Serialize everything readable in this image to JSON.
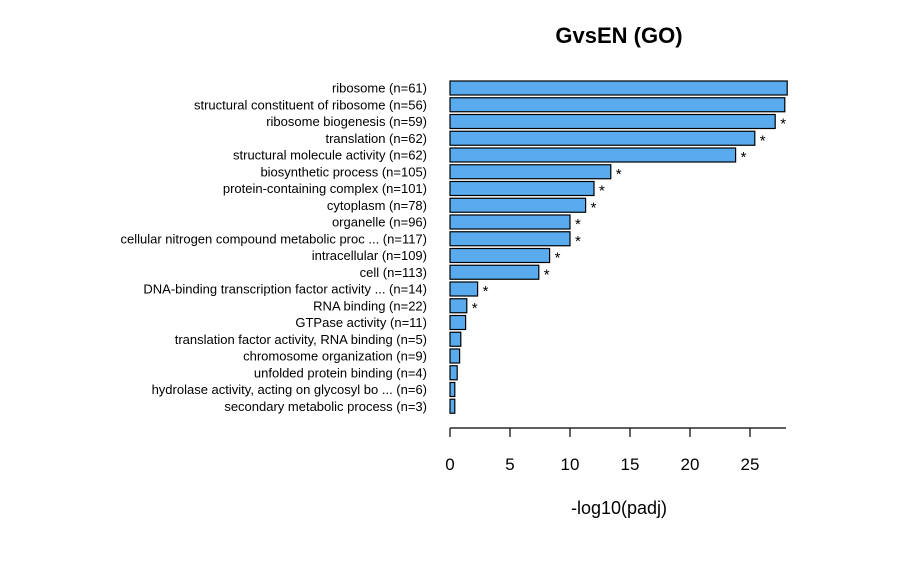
{
  "chart_data": {
    "type": "bar",
    "orientation": "horizontal",
    "title": "GvsEN (GO)",
    "xlabel": "-log10(padj)",
    "ylabel": "",
    "xlim": [
      0,
      28
    ],
    "xticks": [
      "0",
      "5",
      "10",
      "15",
      "20",
      "25"
    ],
    "bar_color": "#5aabee",
    "grid": false,
    "legend": "none",
    "categories": [
      "ribosome (n=61)",
      "structural constituent of ribosome (n=56)",
      "ribosome biogenesis (n=59)",
      "translation (n=62)",
      "structural molecule activity (n=62)",
      "biosynthetic process (n=105)",
      "protein-containing complex (n=101)",
      "cytoplasm (n=78)",
      "organelle (n=96)",
      "cellular nitrogen compound metabolic proc ... (n=117)",
      "intracellular (n=109)",
      "cell (n=113)",
      "DNA-binding transcription factor activity ... (n=14)",
      "RNA binding (n=22)",
      "GTPase activity (n=11)",
      "translation factor activity, RNA binding (n=5)",
      "chromosome organization (n=9)",
      "unfolded protein binding (n=4)",
      "hydrolase activity, acting on glycosyl bo ... (n=6)",
      "secondary metabolic process (n=3)"
    ],
    "values": [
      28.1,
      27.9,
      27.1,
      25.4,
      23.8,
      13.4,
      12.0,
      11.3,
      10.0,
      10.0,
      8.3,
      7.4,
      2.3,
      1.4,
      1.3,
      0.9,
      0.8,
      0.6,
      0.4,
      0.4
    ],
    "annotations": [
      "",
      "",
      "*",
      "*",
      "*",
      "*",
      "*",
      "*",
      "*",
      "*",
      "*",
      "*",
      "*",
      "*",
      "",
      "",
      "",
      "",
      "",
      ""
    ]
  }
}
